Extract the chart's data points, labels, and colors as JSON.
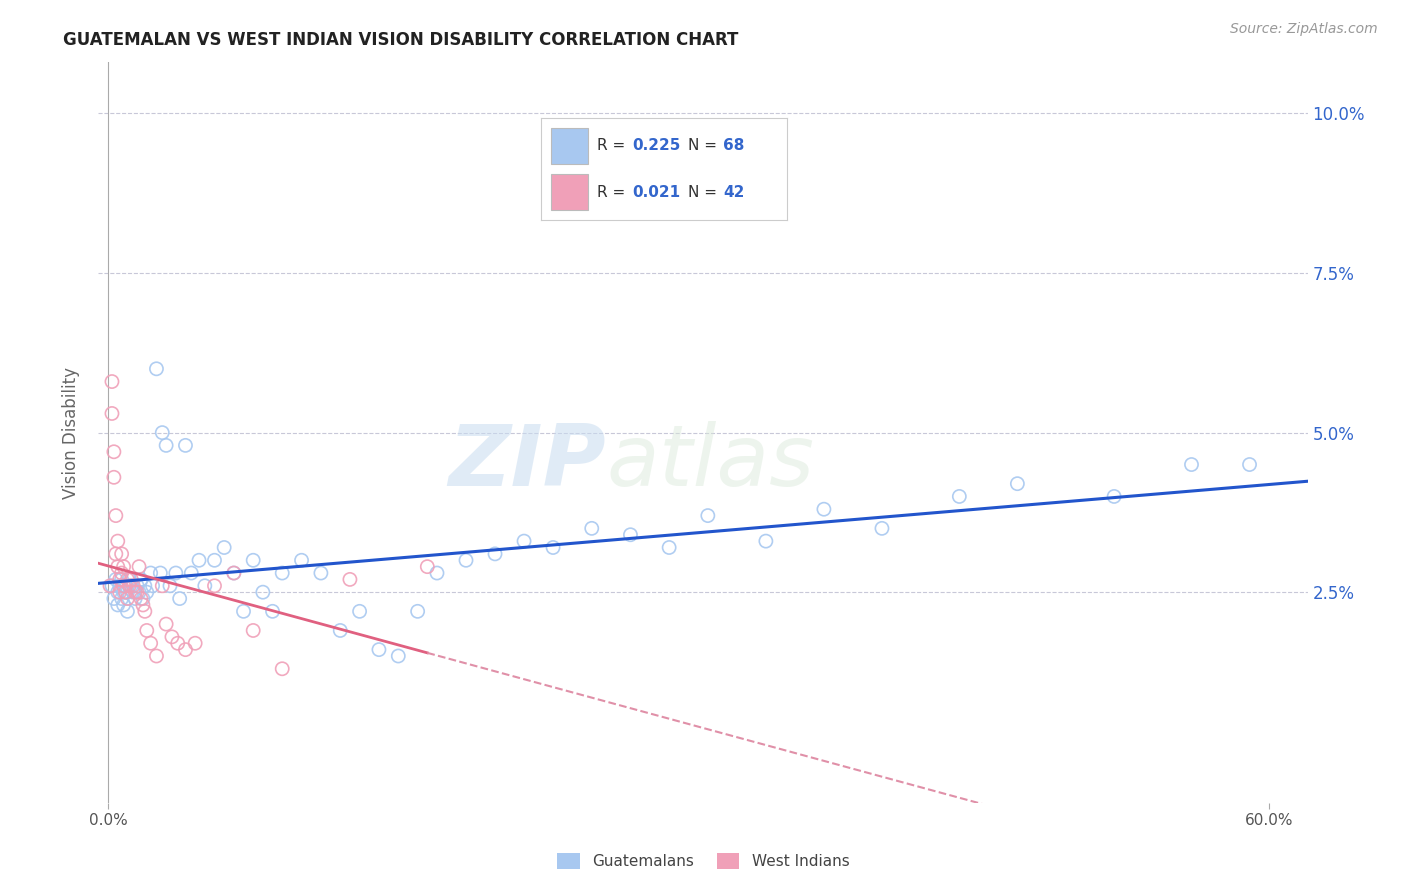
{
  "title": "GUATEMALAN VS WEST INDIAN VISION DISABILITY CORRELATION CHART",
  "source": "Source: ZipAtlas.com",
  "xlabel": "",
  "ylabel": "Vision Disability",
  "xlim": [
    -0.005,
    0.62
  ],
  "ylim": [
    -0.008,
    0.108
  ],
  "yticks": [
    0.025,
    0.05,
    0.075,
    0.1
  ],
  "ytick_labels": [
    "2.5%",
    "5.0%",
    "7.5%",
    "10.0%"
  ],
  "xtick_positions": [
    0.0,
    0.6
  ],
  "xtick_labels": [
    "0.0%",
    "60.0%"
  ],
  "blue_color": "#A8C8F0",
  "pink_color": "#F0A0B8",
  "blue_line_color": "#2255CC",
  "pink_line_color": "#E06080",
  "pink_line_dash_color": "#E090A8",
  "R_blue": 0.225,
  "N_blue": 68,
  "R_pink": 0.021,
  "N_pink": 42,
  "legend_label_blue": "Guatemalans",
  "legend_label_pink": "West Indians",
  "watermark_zip": "ZIP",
  "watermark_atlas": "atlas",
  "background_color": "#ffffff",
  "grid_color": "#c8c8d8",
  "title_color": "#222222",
  "axis_color": "#3366CC",
  "blue_scatter_x": [
    0.002,
    0.003,
    0.004,
    0.005,
    0.005,
    0.006,
    0.007,
    0.007,
    0.008,
    0.008,
    0.009,
    0.01,
    0.01,
    0.011,
    0.012,
    0.013,
    0.014,
    0.015,
    0.016,
    0.017,
    0.018,
    0.019,
    0.02,
    0.022,
    0.023,
    0.025,
    0.027,
    0.028,
    0.03,
    0.032,
    0.035,
    0.037,
    0.04,
    0.043,
    0.047,
    0.05,
    0.055,
    0.06,
    0.065,
    0.07,
    0.075,
    0.08,
    0.085,
    0.09,
    0.1,
    0.11,
    0.12,
    0.13,
    0.14,
    0.15,
    0.16,
    0.17,
    0.185,
    0.2,
    0.215,
    0.23,
    0.25,
    0.27,
    0.29,
    0.31,
    0.34,
    0.37,
    0.4,
    0.44,
    0.47,
    0.52,
    0.56,
    0.59
  ],
  "blue_scatter_y": [
    0.026,
    0.024,
    0.027,
    0.025,
    0.023,
    0.026,
    0.024,
    0.027,
    0.025,
    0.023,
    0.026,
    0.025,
    0.022,
    0.027,
    0.026,
    0.025,
    0.024,
    0.026,
    0.025,
    0.027,
    0.024,
    0.026,
    0.025,
    0.028,
    0.026,
    0.06,
    0.028,
    0.05,
    0.048,
    0.026,
    0.028,
    0.024,
    0.048,
    0.028,
    0.03,
    0.026,
    0.03,
    0.032,
    0.028,
    0.022,
    0.03,
    0.025,
    0.022,
    0.028,
    0.03,
    0.028,
    0.019,
    0.022,
    0.016,
    0.015,
    0.022,
    0.028,
    0.03,
    0.031,
    0.033,
    0.032,
    0.035,
    0.034,
    0.032,
    0.037,
    0.033,
    0.038,
    0.035,
    0.04,
    0.042,
    0.04,
    0.045,
    0.045
  ],
  "pink_scatter_x": [
    0.001,
    0.002,
    0.002,
    0.003,
    0.003,
    0.004,
    0.004,
    0.005,
    0.005,
    0.006,
    0.006,
    0.007,
    0.007,
    0.008,
    0.008,
    0.009,
    0.01,
    0.01,
    0.011,
    0.012,
    0.013,
    0.014,
    0.015,
    0.016,
    0.017,
    0.018,
    0.019,
    0.02,
    0.022,
    0.025,
    0.028,
    0.03,
    0.033,
    0.036,
    0.04,
    0.045,
    0.055,
    0.065,
    0.075,
    0.09,
    0.125,
    0.165
  ],
  "pink_scatter_y": [
    0.026,
    0.058,
    0.053,
    0.047,
    0.043,
    0.037,
    0.031,
    0.033,
    0.029,
    0.027,
    0.025,
    0.031,
    0.028,
    0.029,
    0.026,
    0.025,
    0.027,
    0.024,
    0.026,
    0.027,
    0.026,
    0.025,
    0.025,
    0.029,
    0.024,
    0.023,
    0.022,
    0.019,
    0.017,
    0.015,
    0.026,
    0.02,
    0.018,
    0.017,
    0.016,
    0.017,
    0.026,
    0.028,
    0.019,
    0.013,
    0.027,
    0.029
  ]
}
